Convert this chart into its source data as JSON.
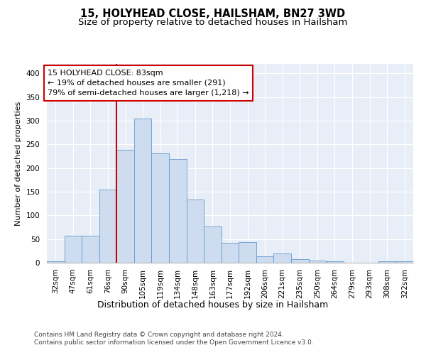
{
  "title": "15, HOLYHEAD CLOSE, HAILSHAM, BN27 3WD",
  "subtitle": "Size of property relative to detached houses in Hailsham",
  "xlabel": "Distribution of detached houses by size in Hailsham",
  "ylabel": "Number of detached properties",
  "categories": [
    "32sqm",
    "47sqm",
    "61sqm",
    "76sqm",
    "90sqm",
    "105sqm",
    "119sqm",
    "134sqm",
    "148sqm",
    "163sqm",
    "177sqm",
    "192sqm",
    "206sqm",
    "221sqm",
    "235sqm",
    "250sqm",
    "264sqm",
    "279sqm",
    "293sqm",
    "308sqm",
    "322sqm"
  ],
  "values": [
    3,
    57,
    57,
    155,
    238,
    305,
    231,
    219,
    134,
    76,
    42,
    43,
    13,
    19,
    7,
    4,
    3,
    0,
    0,
    3,
    3
  ],
  "bar_color": "#cddcee",
  "bar_edge_color": "#6699cc",
  "vline_color": "#cc0000",
  "annotation_text": "15 HOLYHEAD CLOSE: 83sqm\n← 19% of detached houses are smaller (291)\n79% of semi-detached houses are larger (1,218) →",
  "annotation_box_color": "#cc0000",
  "ylim": [
    0,
    420
  ],
  "yticks": [
    0,
    50,
    100,
    150,
    200,
    250,
    300,
    350,
    400
  ],
  "background_color": "#e8eef7",
  "grid_color": "#ffffff",
  "footer_text": "Contains HM Land Registry data © Crown copyright and database right 2024.\nContains public sector information licensed under the Open Government Licence v3.0.",
  "title_fontsize": 10.5,
  "subtitle_fontsize": 9.5,
  "xlabel_fontsize": 9,
  "ylabel_fontsize": 8,
  "annotation_fontsize": 8,
  "footer_fontsize": 6.5,
  "tick_fontsize": 7.5
}
